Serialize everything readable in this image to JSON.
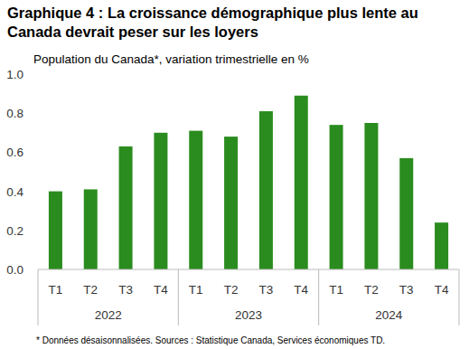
{
  "chart_data": {
    "type": "bar",
    "title": "Graphique 4 : La croissance démographique plus lente au\nCanada devrait peser sur les loyers",
    "subtitle": "Population du Canada*, variation trimestrielle en %",
    "note": "* Données désaisonnalisées.  Sources : Statistique Canada, Services économiques TD.",
    "categories": [
      "T1",
      "T2",
      "T3",
      "T4",
      "T1",
      "T2",
      "T3",
      "T4",
      "T1",
      "T2",
      "T3",
      "T4"
    ],
    "groups": [
      "2022",
      "2023",
      "2024"
    ],
    "values": [
      0.4,
      0.41,
      0.63,
      0.7,
      0.71,
      0.68,
      0.81,
      0.89,
      0.74,
      0.75,
      0.57,
      0.24
    ],
    "color": "#2a8c1e",
    "ylim": [
      0,
      1.0
    ],
    "yticks": [
      {
        "value": 0,
        "label": "0.0"
      },
      {
        "value": 0.2,
        "label": "0.2"
      },
      {
        "value": 0.4,
        "label": "0.4"
      },
      {
        "value": 0.6,
        "label": "0.6"
      },
      {
        "value": 0.8,
        "label": "0.8"
      },
      {
        "value": 1.0,
        "label": "1.0"
      }
    ],
    "grid": false
  }
}
